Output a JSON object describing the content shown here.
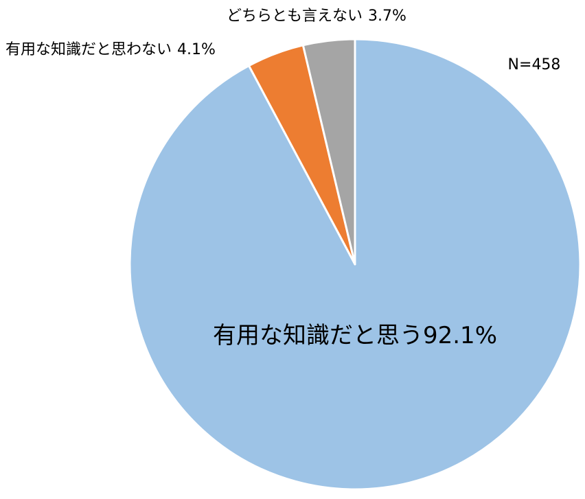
{
  "chart_data": {
    "type": "pie",
    "categories": [
      "有用な知識だと思う",
      "有用な知識だと思わない",
      "どちらとも言えない"
    ],
    "values": [
      92.1,
      4.1,
      3.7
    ],
    "value_labels": [
      "92.1%",
      "4.1%",
      "3.7%"
    ],
    "colors": [
      "#9dc3e6",
      "#ed7d31",
      "#a5a5a5"
    ],
    "annotation": "N=458"
  }
}
